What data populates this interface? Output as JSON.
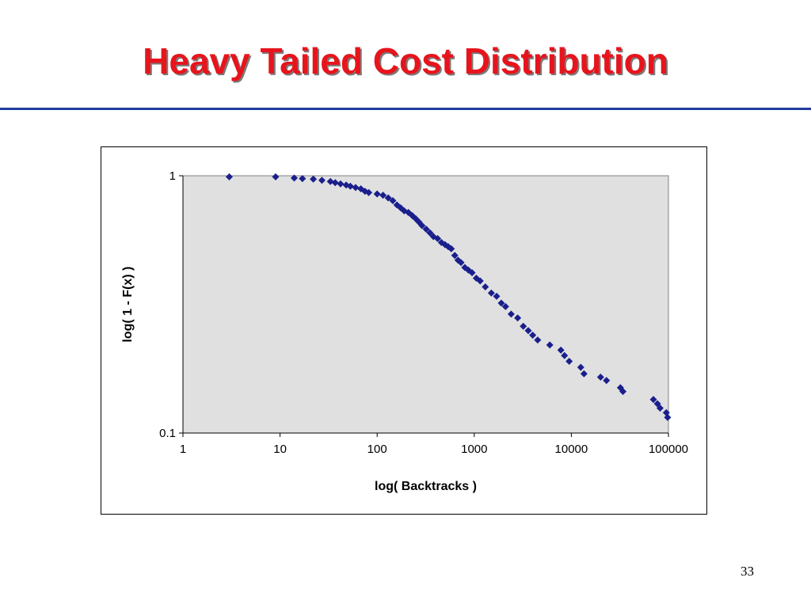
{
  "slide": {
    "title": "Heavy Tailed Cost Distribution",
    "page_number": "33"
  },
  "colors": {
    "title": "#e8141c",
    "rule": "#1f3b9e",
    "plot_area": "#e0e0e0",
    "marker": "#1a1f8c"
  },
  "chart_data": {
    "type": "scatter",
    "marker": "diamond",
    "xlabel": "log( Backtracks )",
    "ylabel": "log( 1 - F(x) )",
    "xscale": "log",
    "yscale": "log",
    "xlim": [
      1,
      100000
    ],
    "ylim": [
      0.1,
      1
    ],
    "xticks": [
      "1",
      "10",
      "100",
      "1000",
      "10000",
      "100000"
    ],
    "yticks": [
      "0.1",
      "1"
    ],
    "grid": false,
    "legend": "none",
    "points": [
      [
        3.0,
        0.99
      ],
      [
        9.0,
        0.99
      ],
      [
        14,
        0.98
      ],
      [
        17,
        0.975
      ],
      [
        22,
        0.97
      ],
      [
        27,
        0.96
      ],
      [
        33,
        0.95
      ],
      [
        37,
        0.94
      ],
      [
        42,
        0.93
      ],
      [
        48,
        0.92
      ],
      [
        53,
        0.91
      ],
      [
        60,
        0.9
      ],
      [
        68,
        0.89
      ],
      [
        75,
        0.87
      ],
      [
        82,
        0.86
      ],
      [
        100,
        0.85
      ],
      [
        115,
        0.84
      ],
      [
        130,
        0.82
      ],
      [
        145,
        0.8
      ],
      [
        160,
        0.77
      ],
      [
        175,
        0.75
      ],
      [
        190,
        0.73
      ],
      [
        210,
        0.72
      ],
      [
        230,
        0.7
      ],
      [
        250,
        0.68
      ],
      [
        270,
        0.66
      ],
      [
        290,
        0.64
      ],
      [
        320,
        0.62
      ],
      [
        350,
        0.6
      ],
      [
        380,
        0.58
      ],
      [
        420,
        0.57
      ],
      [
        460,
        0.55
      ],
      [
        500,
        0.54
      ],
      [
        540,
        0.53
      ],
      [
        580,
        0.52
      ],
      [
        630,
        0.49
      ],
      [
        680,
        0.47
      ],
      [
        730,
        0.46
      ],
      [
        800,
        0.44
      ],
      [
        870,
        0.43
      ],
      [
        950,
        0.42
      ],
      [
        1050,
        0.4
      ],
      [
        1150,
        0.39
      ],
      [
        1300,
        0.37
      ],
      [
        1500,
        0.35
      ],
      [
        1700,
        0.34
      ],
      [
        1900,
        0.32
      ],
      [
        2100,
        0.31
      ],
      [
        2400,
        0.29
      ],
      [
        2800,
        0.28
      ],
      [
        3200,
        0.26
      ],
      [
        3600,
        0.25
      ],
      [
        4000,
        0.24
      ],
      [
        4500,
        0.23
      ],
      [
        6000,
        0.22
      ],
      [
        7800,
        0.21
      ],
      [
        8500,
        0.2
      ],
      [
        9500,
        0.19
      ],
      [
        12500,
        0.18
      ],
      [
        13500,
        0.17
      ],
      [
        20000,
        0.165
      ],
      [
        23000,
        0.16
      ],
      [
        32000,
        0.15
      ],
      [
        34000,
        0.145
      ],
      [
        70000,
        0.135
      ],
      [
        77000,
        0.13
      ],
      [
        82000,
        0.125
      ],
      [
        95000,
        0.12
      ],
      [
        98000,
        0.115
      ]
    ]
  }
}
